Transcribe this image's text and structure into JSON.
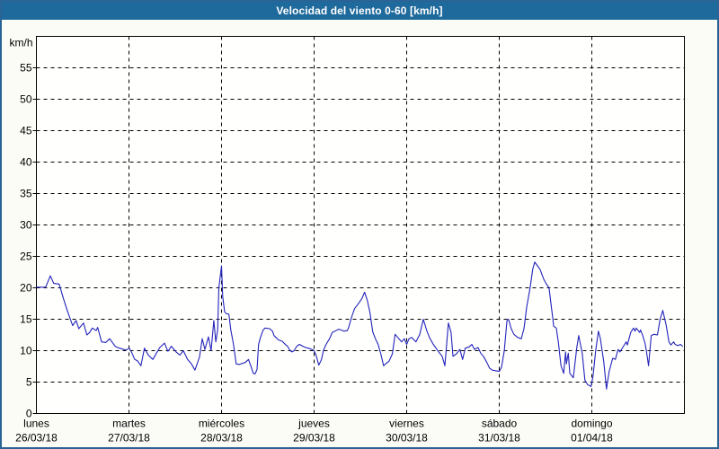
{
  "window": {
    "title": "Velocidad del viento 0-60 [km/h]"
  },
  "colors": {
    "titlebar_bg": "#1f6a9c",
    "window_border": "#2a6496",
    "background": "#fbfcf6",
    "plot_background": "#fffffd",
    "grid": "#000000",
    "axis": "#000000",
    "text": "#000000",
    "title_text": "#ffffff",
    "line": "#2323bc"
  },
  "chart_data": {
    "type": "line",
    "title": "Velocidad del viento 0-60 [km/h]",
    "unit_label": "km/h",
    "ylabel": "",
    "xlabel": "",
    "ylim": [
      0,
      60
    ],
    "yticks": [
      0,
      5,
      10,
      15,
      20,
      25,
      30,
      35,
      40,
      45,
      50,
      55
    ],
    "grid": "dashed",
    "legend": "none",
    "x_hours_total": 168,
    "x_axis": {
      "days": [
        {
          "name": "lunes",
          "date": "26/03/18"
        },
        {
          "name": "martes",
          "date": "27/03/18"
        },
        {
          "name": "miércoles",
          "date": "28/03/18"
        },
        {
          "name": "jueves",
          "date": "29/03/18"
        },
        {
          "name": "viernes",
          "date": "30/03/18"
        },
        {
          "name": "sábado",
          "date": "31/03/18"
        },
        {
          "name": "domingo",
          "date": "01/04/18"
        }
      ]
    },
    "series": [
      {
        "name": "Velocidad del viento",
        "color": "#2323bc",
        "points": [
          [
            0,
            20.1
          ],
          [
            2.4,
            20.1
          ],
          [
            3.6,
            21.9
          ],
          [
            4.5,
            20.7
          ],
          [
            5.9,
            20.6
          ],
          [
            7.1,
            18.1
          ],
          [
            8,
            16.4
          ],
          [
            9.4,
            14.0
          ],
          [
            10.3,
            14.8
          ],
          [
            11,
            13.5
          ],
          [
            12.2,
            14.4
          ],
          [
            13.1,
            12.5
          ],
          [
            13.8,
            12.9
          ],
          [
            14.5,
            13.6
          ],
          [
            15.5,
            13.2
          ],
          [
            15.9,
            13.7
          ],
          [
            16.9,
            11.4
          ],
          [
            18,
            11.3
          ],
          [
            19,
            11.9
          ],
          [
            20.4,
            10.7
          ],
          [
            21.5,
            10.4
          ],
          [
            23.2,
            10.1
          ],
          [
            24.1,
            10.4
          ],
          [
            24.8,
            9.6
          ],
          [
            25.5,
            8.6
          ],
          [
            26.2,
            8.4
          ],
          [
            27.1,
            7.6
          ],
          [
            28,
            10.4
          ],
          [
            29,
            9.3
          ],
          [
            30.2,
            8.6
          ],
          [
            31.1,
            9.6
          ],
          [
            32,
            10.5
          ],
          [
            33.2,
            11.2
          ],
          [
            34.1,
            9.9
          ],
          [
            35,
            10.7
          ],
          [
            36.2,
            9.8
          ],
          [
            37.2,
            9.3
          ],
          [
            38.1,
            10.0
          ],
          [
            39.2,
            8.6
          ],
          [
            40.2,
            7.9
          ],
          [
            41.1,
            6.9
          ],
          [
            42.3,
            9.0
          ],
          [
            43,
            11.9
          ],
          [
            43.7,
            10.2
          ],
          [
            44.6,
            12.2
          ],
          [
            45.3,
            10.0
          ],
          [
            46,
            14.8
          ],
          [
            46.5,
            11.4
          ],
          [
            47,
            13.3
          ],
          [
            47.3,
            20.0
          ],
          [
            48,
            23.5
          ],
          [
            48.3,
            18.6
          ],
          [
            48.8,
            16.2
          ],
          [
            49.2,
            15.9
          ],
          [
            49.9,
            15.8
          ],
          [
            50.4,
            13.3
          ],
          [
            51.1,
            11.0
          ],
          [
            51.8,
            7.9
          ],
          [
            52.7,
            7.8
          ],
          [
            53.4,
            8.0
          ],
          [
            54.1,
            8.1
          ],
          [
            55,
            8.6
          ],
          [
            55.7,
            7.4
          ],
          [
            56.2,
            6.4
          ],
          [
            56.7,
            6.3
          ],
          [
            57.2,
            7.0
          ],
          [
            57.6,
            11.0
          ],
          [
            58.1,
            12.1
          ],
          [
            58.8,
            13.3
          ],
          [
            59.3,
            13.6
          ],
          [
            60.5,
            13.5
          ],
          [
            61.2,
            13.1
          ],
          [
            61.6,
            12.4
          ],
          [
            62.1,
            12.1
          ],
          [
            62.8,
            11.7
          ],
          [
            63.7,
            11.5
          ],
          [
            64.7,
            10.9
          ],
          [
            65.1,
            10.7
          ],
          [
            65.8,
            10.0
          ],
          [
            66.3,
            9.8
          ],
          [
            66.8,
            10.0
          ],
          [
            67.5,
            10.7
          ],
          [
            68.2,
            11.0
          ],
          [
            69.1,
            10.7
          ],
          [
            69.8,
            10.5
          ],
          [
            70.5,
            10.4
          ],
          [
            71.4,
            10.2
          ],
          [
            72,
            10.0
          ],
          [
            72.5,
            9.3
          ],
          [
            73.2,
            7.7
          ],
          [
            73.9,
            8.6
          ],
          [
            74.4,
            10.0
          ],
          [
            75.1,
            11.0
          ],
          [
            76,
            11.9
          ],
          [
            76.7,
            12.9
          ],
          [
            77.4,
            13.1
          ],
          [
            78.3,
            13.4
          ],
          [
            79,
            13.3
          ],
          [
            79.7,
            13.1
          ],
          [
            80.6,
            13.2
          ],
          [
            80.9,
            13.6
          ],
          [
            81.8,
            15.5
          ],
          [
            82.5,
            16.7
          ],
          [
            83.4,
            17.4
          ],
          [
            84.4,
            18.3
          ],
          [
            85.1,
            19.3
          ],
          [
            85.8,
            18.0
          ],
          [
            86.5,
            16.0
          ],
          [
            87.2,
            13.0
          ],
          [
            87.9,
            11.9
          ],
          [
            88.6,
            11.0
          ],
          [
            89.3,
            9.5
          ],
          [
            90,
            7.6
          ],
          [
            90.7,
            8.0
          ],
          [
            91.4,
            8.3
          ],
          [
            92.3,
            9.5
          ],
          [
            93,
            12.6
          ],
          [
            93.7,
            12.1
          ],
          [
            94.7,
            11.4
          ],
          [
            95.4,
            11.9
          ],
          [
            96,
            11.0
          ],
          [
            96.6,
            11.9
          ],
          [
            97.3,
            12.1
          ],
          [
            98.4,
            11.4
          ],
          [
            99.4,
            12.6
          ],
          [
            100.3,
            15.0
          ],
          [
            101.2,
            13.2
          ],
          [
            101.9,
            12.1
          ],
          [
            102.9,
            11.0
          ],
          [
            103.6,
            10.4
          ],
          [
            104.3,
            9.8
          ],
          [
            105.2,
            9.1
          ],
          [
            105.9,
            7.6
          ],
          [
            106.8,
            14.4
          ],
          [
            107.5,
            12.9
          ],
          [
            108,
            9.1
          ],
          [
            108.9,
            9.5
          ],
          [
            109.8,
            10.2
          ],
          [
            110.5,
            8.6
          ],
          [
            111.2,
            10.4
          ],
          [
            112.2,
            10.6
          ],
          [
            112.9,
            11.0
          ],
          [
            113.6,
            10.2
          ],
          [
            114.5,
            10.5
          ],
          [
            115.2,
            9.6
          ],
          [
            115.9,
            9.1
          ],
          [
            116.8,
            8.1
          ],
          [
            117.5,
            7.2
          ],
          [
            118.2,
            6.9
          ],
          [
            119.2,
            6.8
          ],
          [
            120,
            6.7
          ],
          [
            120.6,
            7.4
          ],
          [
            121.3,
            10.0
          ],
          [
            122,
            14.8
          ],
          [
            122.4,
            15.0
          ],
          [
            123.1,
            13.5
          ],
          [
            123.8,
            12.6
          ],
          [
            124.8,
            12.1
          ],
          [
            125.7,
            11.9
          ],
          [
            126.4,
            13.5
          ],
          [
            127.1,
            16.9
          ],
          [
            128,
            20.0
          ],
          [
            128.7,
            23.0
          ],
          [
            129.2,
            24.1
          ],
          [
            129.9,
            23.5
          ],
          [
            130.6,
            22.9
          ],
          [
            131.5,
            21.4
          ],
          [
            132.2,
            20.6
          ],
          [
            132.9,
            20.0
          ],
          [
            133.4,
            17.5
          ],
          [
            133.9,
            15.0
          ],
          [
            134.1,
            13.9
          ],
          [
            134.8,
            13.6
          ],
          [
            135.3,
            11.4
          ],
          [
            136,
            7.6
          ],
          [
            136.7,
            6.4
          ],
          [
            137.2,
            9.8
          ],
          [
            137.4,
            7.9
          ],
          [
            137.9,
            9.6
          ],
          [
            138.3,
            6.4
          ],
          [
            139.2,
            5.7
          ],
          [
            140.1,
            10.5
          ],
          [
            140.6,
            12.4
          ],
          [
            141.5,
            9.6
          ],
          [
            142.2,
            5.3
          ],
          [
            142.9,
            4.6
          ],
          [
            143.8,
            4.3
          ],
          [
            144.3,
            5.9
          ],
          [
            145,
            10.0
          ],
          [
            145.7,
            13.1
          ],
          [
            146.2,
            12.0
          ],
          [
            147.1,
            8.2
          ],
          [
            147.8,
            3.9
          ],
          [
            148.5,
            6.7
          ],
          [
            149.4,
            8.8
          ],
          [
            150.1,
            8.6
          ],
          [
            150.8,
            10.2
          ],
          [
            151.3,
            9.8
          ],
          [
            152,
            10.5
          ],
          [
            152.9,
            11.4
          ],
          [
            153.2,
            10.9
          ],
          [
            154.1,
            12.9
          ],
          [
            154.8,
            13.6
          ],
          [
            155.2,
            13.1
          ],
          [
            155.5,
            13.6
          ],
          [
            156.4,
            12.9
          ],
          [
            156.6,
            13.3
          ],
          [
            157.1,
            12.6
          ],
          [
            157.8,
            11.2
          ],
          [
            158.2,
            9.8
          ],
          [
            158.7,
            7.6
          ],
          [
            159.4,
            12.4
          ],
          [
            160.1,
            12.6
          ],
          [
            161,
            12.5
          ],
          [
            161.7,
            15.0
          ],
          [
            162.4,
            16.4
          ],
          [
            163.3,
            14.0
          ],
          [
            164,
            11.4
          ],
          [
            164.5,
            10.9
          ],
          [
            165.2,
            11.4
          ],
          [
            165.6,
            11.0
          ],
          [
            166.3,
            10.8
          ],
          [
            167,
            11.0
          ],
          [
            167.5,
            10.7
          ]
        ]
      }
    ]
  }
}
